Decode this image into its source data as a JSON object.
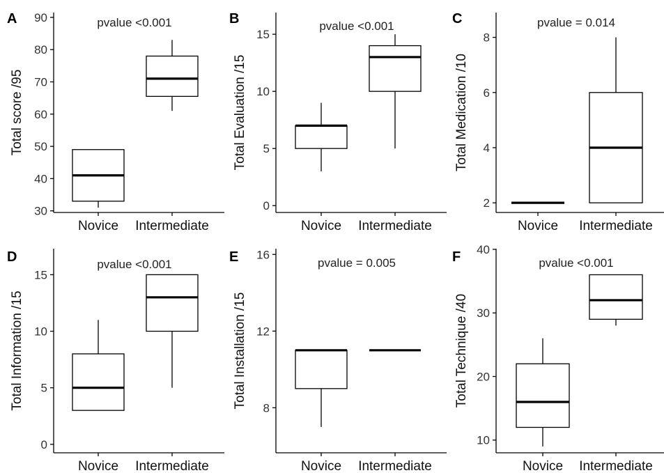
{
  "chart_data": [
    {
      "type": "box",
      "panel": "A",
      "annotation": "pvalue <0.001",
      "ylabel": "Total score /95",
      "categories": [
        "Novice",
        "Intermediate"
      ],
      "yticks": [
        30,
        40,
        50,
        60,
        70,
        80,
        90
      ],
      "ylim": [
        29.5,
        91.5
      ],
      "boxes": [
        {
          "category": "Novice",
          "min": 31,
          "q1": 33,
          "median": 41,
          "q3": 49,
          "max": 49
        },
        {
          "category": "Intermediate",
          "min": 61,
          "q1": 65.5,
          "median": 71,
          "q3": 78,
          "max": 83
        }
      ]
    },
    {
      "type": "box",
      "panel": "B",
      "annotation": "pvalue <0.001",
      "ylabel": "Total Evaluation /15",
      "categories": [
        "Novice",
        "Intermediate"
      ],
      "yticks": [
        0,
        5,
        10,
        15
      ],
      "ylim": [
        -0.6,
        16.9
      ],
      "boxes": [
        {
          "category": "Novice",
          "min": 3,
          "q1": 5,
          "median": 7,
          "q3": 7,
          "max": 9
        },
        {
          "category": "Intermediate",
          "min": 5,
          "q1": 10,
          "median": 13,
          "q3": 14,
          "max": 15
        }
      ]
    },
    {
      "type": "box",
      "panel": "C",
      "annotation": "pvalue = 0.014",
      "ylabel": "Total Medication /10",
      "categories": [
        "Novice",
        "Intermediate"
      ],
      "yticks": [
        2,
        4,
        6,
        8
      ],
      "ylim": [
        1.65,
        8.9
      ],
      "boxes": [
        {
          "category": "Novice",
          "min": 2,
          "q1": 2,
          "median": 2,
          "q3": 2,
          "max": 2
        },
        {
          "category": "Intermediate",
          "min": 2,
          "q1": 2,
          "median": 4,
          "q3": 6,
          "max": 8
        }
      ]
    },
    {
      "type": "box",
      "panel": "D",
      "annotation": "pvalue <0.001",
      "ylabel": "Total Information /15",
      "categories": [
        "Novice",
        "Intermediate"
      ],
      "yticks": [
        0,
        5,
        10,
        15
      ],
      "ylim": [
        -0.75,
        17.3
      ],
      "boxes": [
        {
          "category": "Novice",
          "min": 3,
          "q1": 3,
          "median": 5,
          "q3": 8,
          "max": 11
        },
        {
          "category": "Intermediate",
          "min": 5,
          "q1": 10,
          "median": 13,
          "q3": 15,
          "max": 15
        }
      ]
    },
    {
      "type": "box",
      "panel": "E",
      "annotation": "pvalue = 0.005",
      "ylabel": "Total Installation /15",
      "categories": [
        "Novice",
        "Intermediate"
      ],
      "yticks": [
        8,
        12,
        16
      ],
      "ylim": [
        5.65,
        16.3
      ],
      "boxes": [
        {
          "category": "Novice",
          "min": 7,
          "q1": 9,
          "median": 11,
          "q3": 11,
          "max": 11
        },
        {
          "category": "Intermediate",
          "min": 11,
          "q1": 11,
          "median": 11,
          "q3": 11,
          "max": 11
        }
      ]
    },
    {
      "type": "box",
      "panel": "F",
      "annotation": "pvalue <0.001",
      "ylabel": "Total Technique /40",
      "categories": [
        "Novice",
        "Intermediate"
      ],
      "yticks": [
        10,
        20,
        30,
        40
      ],
      "ylim": [
        8,
        40.1
      ],
      "boxes": [
        {
          "category": "Novice",
          "min": 9,
          "q1": 12,
          "median": 16,
          "q3": 22,
          "max": 26
        },
        {
          "category": "Intermediate",
          "min": 28,
          "q1": 29,
          "median": 32,
          "q3": 36,
          "max": 36
        }
      ]
    }
  ]
}
